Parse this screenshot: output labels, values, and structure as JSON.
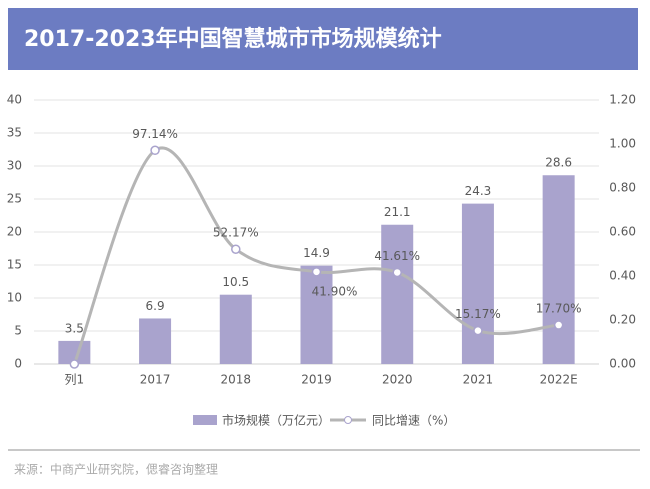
{
  "chart_data": {
    "type": "bar-line",
    "title": "2017-2023年中国智慧城市市场规模统计",
    "categories": [
      "列1",
      "2017",
      "2018",
      "2019",
      "2020",
      "2021",
      "2022E"
    ],
    "series": [
      {
        "name": "市场规模（万亿元）",
        "type": "bar",
        "color": "#a9a3cd",
        "values": [
          3.5,
          6.9,
          10.5,
          14.9,
          21.1,
          24.3,
          28.6
        ]
      },
      {
        "name": "同比增速（%）",
        "type": "line",
        "axis": "y2",
        "color": "#b5b5b5",
        "values": [
          0,
          0.9714,
          0.5217,
          0.419,
          0.4161,
          0.1517,
          0.177
        ],
        "value_labels": [
          null,
          "97.14%",
          "52.17%",
          "41.90%",
          "41.61%",
          "15.17%",
          "17.70%"
        ]
      }
    ],
    "ylim": [
      0,
      40
    ],
    "yticks": [
      0,
      5,
      10,
      15,
      20,
      25,
      30,
      35,
      40
    ],
    "y2lim": [
      0,
      1.2
    ],
    "y2ticks": [
      {
        "value": 0,
        "label": "0.00"
      },
      {
        "value": 0.2,
        "label": "0.20"
      },
      {
        "value": 0.4,
        "label": "0.40"
      },
      {
        "value": 0.6,
        "label": "0.60"
      },
      {
        "value": 0.8,
        "label": "0.80"
      },
      {
        "value": 1.0,
        "label": "1.00"
      },
      {
        "value": 1.2,
        "label": "1.20"
      }
    ],
    "grid": true,
    "source": "来源：中商产业研究院，偲睿咨询整理"
  }
}
